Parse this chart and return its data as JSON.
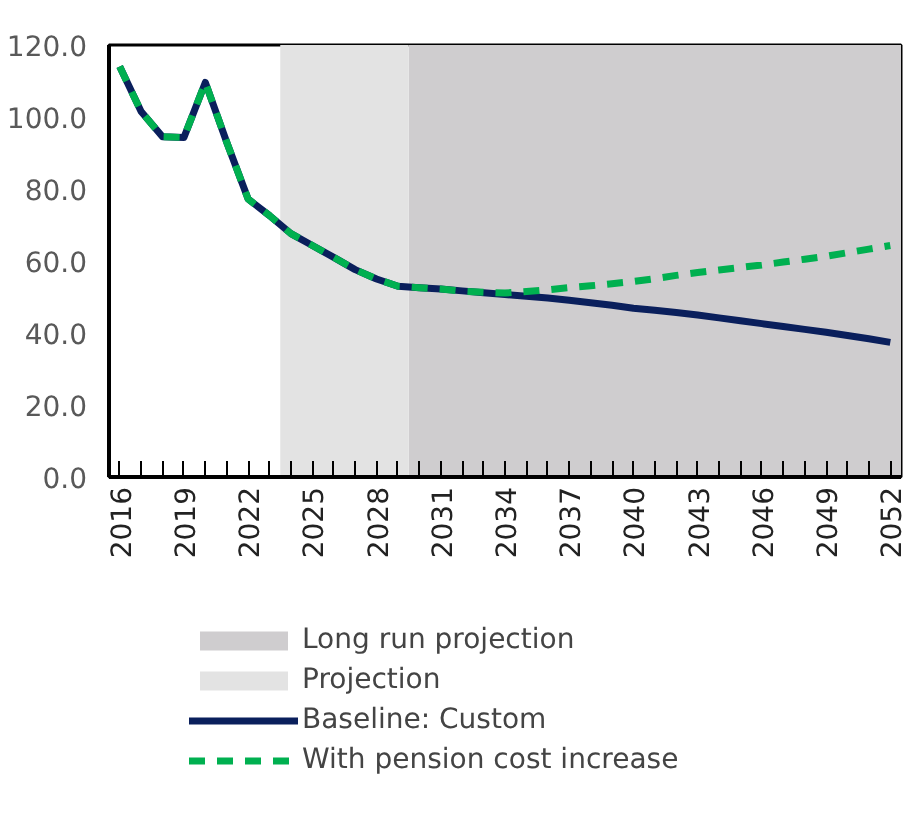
{
  "chart_data": {
    "type": "line",
    "x": [
      2016,
      2017,
      2018,
      2019,
      2020,
      2021,
      2022,
      2023,
      2024,
      2025,
      2026,
      2027,
      2028,
      2029,
      2030,
      2031,
      2032,
      2033,
      2034,
      2035,
      2036,
      2037,
      2038,
      2039,
      2040,
      2041,
      2042,
      2043,
      2044,
      2045,
      2046,
      2047,
      2048,
      2049,
      2050,
      2051,
      2052
    ],
    "series": [
      {
        "name": "Baseline: Custom",
        "color": "#0a1f5c",
        "line_style": "solid",
        "values": [
          114,
          101.5,
          94.5,
          94.3,
          109.6,
          93,
          77.2,
          72.6,
          67.6,
          64.3,
          61,
          57.6,
          55,
          53,
          52.6,
          52.2,
          51.7,
          51.2,
          50.7,
          50.2,
          49.7,
          49.1,
          48.4,
          47.7,
          46.9,
          46.3,
          45.7,
          45,
          44.2,
          43.4,
          42.6,
          41.8,
          41,
          40.2,
          39.3,
          38.4,
          37.4
        ]
      },
      {
        "name": "With pension cost increase",
        "color": "#00b050",
        "line_style": "dashed",
        "values": [
          114,
          101.5,
          94.5,
          94.3,
          109.6,
          93,
          77.2,
          72.6,
          67.6,
          64.3,
          61,
          57.6,
          55,
          53,
          52.6,
          52.2,
          51.6,
          51.3,
          51.1,
          51.5,
          52,
          52.6,
          53.1,
          53.7,
          54.3,
          55.1,
          56,
          56.8,
          57.5,
          58.2,
          58.9,
          59.7,
          60.5,
          61.3,
          62.3,
          63.3,
          64.3
        ]
      }
    ],
    "bands": [
      {
        "axis": "x",
        "from": 2029.5,
        "to": 2052.5,
        "label": "Long run projection",
        "color": "#cfcdcf"
      },
      {
        "axis": "x",
        "from": 2023.5,
        "to": 2029.5,
        "label": "Projection",
        "color": "#e3e3e3"
      }
    ],
    "xlim": [
      2015.5,
      2052.5
    ],
    "xticks": [
      2016,
      {
        "value": 2017,
        "label": null
      },
      {
        "value": 2018,
        "label": null
      },
      2019,
      {
        "value": 2020,
        "label": null
      },
      {
        "value": 2021,
        "label": null
      },
      2022,
      {
        "value": 2023,
        "label": null
      },
      {
        "value": 2024,
        "label": null
      },
      2025,
      {
        "value": 2026,
        "label": null
      },
      {
        "value": 2027,
        "label": null
      },
      2028,
      {
        "value": 2029,
        "label": null
      },
      {
        "value": 2030,
        "label": null
      },
      2031,
      {
        "value": 2032,
        "label": null
      },
      {
        "value": 2033,
        "label": null
      },
      2034,
      {
        "value": 2035,
        "label": null
      },
      {
        "value": 2036,
        "label": null
      },
      2037,
      {
        "value": 2038,
        "label": null
      },
      {
        "value": 2039,
        "label": null
      },
      2040,
      {
        "value": 2041,
        "label": null
      },
      {
        "value": 2042,
        "label": null
      },
      2043,
      {
        "value": 2044,
        "label": null
      },
      {
        "value": 2045,
        "label": null
      },
      2046,
      {
        "value": 2047,
        "label": null
      },
      {
        "value": 2048,
        "label": null
      },
      2049,
      {
        "value": 2050,
        "label": null
      },
      {
        "value": 2051,
        "label": null
      },
      2052
    ],
    "ylim": [
      0,
      120
    ],
    "yticks": [
      {
        "value": 0,
        "label": "0.0"
      },
      {
        "value": 20,
        "label": "20.0"
      },
      {
        "value": 40,
        "label": "40.0"
      },
      {
        "value": 60,
        "label": "60.0"
      },
      {
        "value": 80,
        "label": "80.0"
      },
      {
        "value": 100,
        "label": "100.0"
      },
      {
        "value": 120,
        "label": "120.0"
      }
    ],
    "grid": false,
    "legend": "bottom"
  }
}
